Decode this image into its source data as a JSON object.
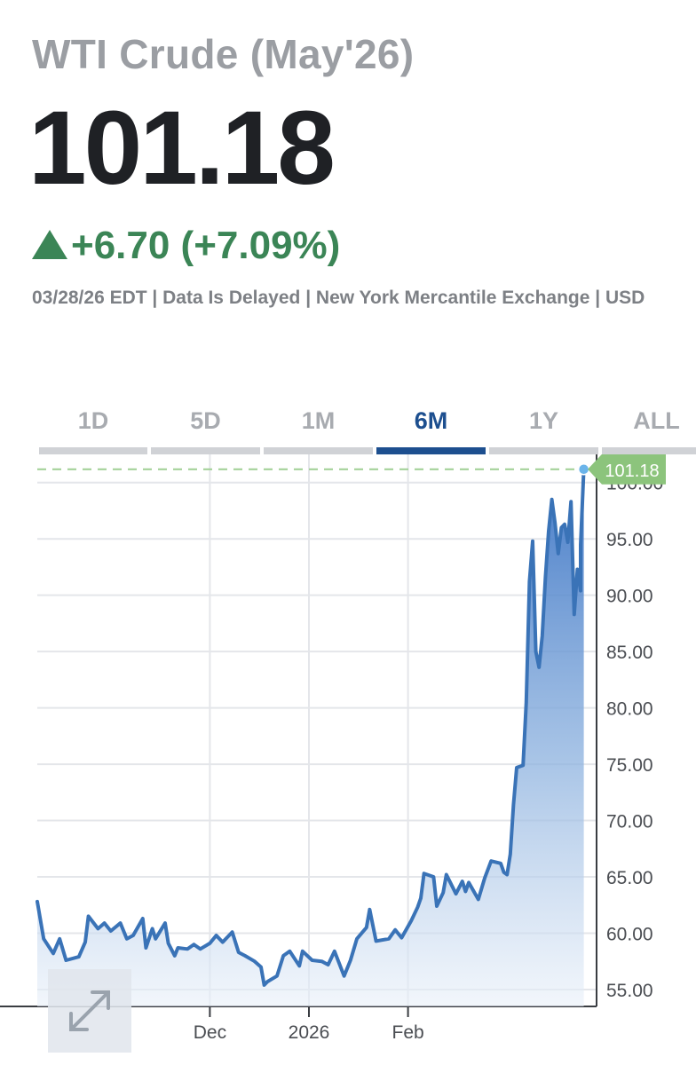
{
  "header": {
    "title": "WTI Crude (May'26)",
    "price": "101.18",
    "change": "+6.70 (+7.09%)",
    "meta": "03/28/26 EDT | Data Is Delayed | New York Mercantile Exchange | USD"
  },
  "tabs": [
    {
      "label": "1D",
      "active": false
    },
    {
      "label": "5D",
      "active": false
    },
    {
      "label": "1M",
      "active": false
    },
    {
      "label": "6M",
      "active": true
    },
    {
      "label": "1Y",
      "active": false
    },
    {
      "label": "ALL",
      "active": false
    }
  ],
  "colors": {
    "line": "#3a73b7",
    "positive": "#3b8556",
    "last_marker": "#6bb4ea",
    "last_label_bg": "#8cc47c",
    "active_tab": "#1d4f8f"
  },
  "icons": {
    "expand": "expand-arrows-icon"
  },
  "chart_data": {
    "type": "area",
    "y_ticks": [
      "55.00",
      "60.00",
      "65.00",
      "70.00",
      "75.00",
      "80.00",
      "85.00",
      "90.00",
      "95.00",
      "100.00"
    ],
    "ylim": [
      53.5,
      102.5
    ],
    "y_axis_side": "right",
    "x_ticks": [
      {
        "x": "2025-12-01",
        "label": "Dec"
      },
      {
        "x": "2026-01-01",
        "label": "2026"
      },
      {
        "x": "2026-02-01",
        "label": "Feb"
      }
    ],
    "xlim": [
      "2025-10-08",
      "2026-04-01"
    ],
    "grid": true,
    "last_value": "101.18",
    "reference_line": 101.18,
    "series": [
      {
        "points": [
          [
            "2025-10-08",
            62.8
          ],
          [
            "2025-10-10",
            59.5
          ],
          [
            "2025-10-13",
            58.2
          ],
          [
            "2025-10-15",
            59.5
          ],
          [
            "2025-10-17",
            57.6
          ],
          [
            "2025-10-21",
            57.9
          ],
          [
            "2025-10-23",
            59.2
          ],
          [
            "2025-10-24",
            61.5
          ],
          [
            "2025-10-27",
            60.4
          ],
          [
            "2025-10-29",
            60.9
          ],
          [
            "2025-10-31",
            60.2
          ],
          [
            "2025-11-03",
            60.9
          ],
          [
            "2025-11-05",
            59.5
          ],
          [
            "2025-11-07",
            59.8
          ],
          [
            "2025-11-10",
            61.3
          ],
          [
            "2025-11-11",
            58.7
          ],
          [
            "2025-11-13",
            60.4
          ],
          [
            "2025-11-14",
            59.5
          ],
          [
            "2025-11-17",
            60.9
          ],
          [
            "2025-11-18",
            59.1
          ],
          [
            "2025-11-20",
            58.0
          ],
          [
            "2025-11-21",
            58.7
          ],
          [
            "2025-11-24",
            58.6
          ],
          [
            "2025-11-26",
            59.0
          ],
          [
            "2025-11-28",
            58.6
          ],
          [
            "2025-12-01",
            59.1
          ],
          [
            "2025-12-03",
            59.8
          ],
          [
            "2025-12-05",
            59.2
          ],
          [
            "2025-12-08",
            60.1
          ],
          [
            "2025-12-10",
            58.3
          ],
          [
            "2025-12-12",
            58.0
          ],
          [
            "2025-12-15",
            57.5
          ],
          [
            "2025-12-17",
            57.0
          ],
          [
            "2025-12-18",
            55.4
          ],
          [
            "2025-12-19",
            55.7
          ],
          [
            "2025-12-22",
            56.2
          ],
          [
            "2025-12-23",
            57.1
          ],
          [
            "2025-12-24",
            58.0
          ],
          [
            "2025-12-26",
            58.4
          ],
          [
            "2025-12-29",
            57.1
          ],
          [
            "2025-12-30",
            58.4
          ],
          [
            "2026-01-02",
            57.6
          ],
          [
            "2026-01-05",
            57.5
          ],
          [
            "2026-01-07",
            57.2
          ],
          [
            "2026-01-09",
            58.4
          ],
          [
            "2026-01-12",
            56.2
          ],
          [
            "2026-01-14",
            57.6
          ],
          [
            "2026-01-16",
            59.5
          ],
          [
            "2026-01-19",
            60.5
          ],
          [
            "2026-01-20",
            62.1
          ],
          [
            "2026-01-22",
            59.3
          ],
          [
            "2026-01-26",
            59.5
          ],
          [
            "2026-01-28",
            60.3
          ],
          [
            "2026-01-30",
            59.6
          ],
          [
            "2026-02-02",
            61.1
          ],
          [
            "2026-02-04",
            62.3
          ],
          [
            "2026-02-05",
            63.1
          ],
          [
            "2026-02-06",
            65.3
          ],
          [
            "2026-02-09",
            65.0
          ],
          [
            "2026-02-10",
            62.4
          ],
          [
            "2026-02-12",
            63.6
          ],
          [
            "2026-02-13",
            65.2
          ],
          [
            "2026-02-16",
            63.5
          ],
          [
            "2026-02-18",
            64.6
          ],
          [
            "2026-02-19",
            63.7
          ],
          [
            "2026-02-20",
            64.5
          ],
          [
            "2026-02-23",
            63.0
          ],
          [
            "2026-02-25",
            64.9
          ],
          [
            "2026-02-27",
            66.4
          ],
          [
            "2026-03-02",
            66.2
          ],
          [
            "2026-03-03",
            65.4
          ],
          [
            "2026-03-04",
            65.2
          ],
          [
            "2026-03-05",
            67.0
          ],
          [
            "2026-03-06",
            71.4
          ],
          [
            "2026-03-07",
            74.7
          ],
          [
            "2026-03-09",
            74.9
          ],
          [
            "2026-03-10",
            80.5
          ],
          [
            "2026-03-11",
            91.2
          ],
          [
            "2026-03-12",
            94.8
          ],
          [
            "2026-03-13",
            85.0
          ],
          [
            "2026-03-14",
            83.6
          ],
          [
            "2026-03-15",
            86.4
          ],
          [
            "2026-03-16",
            91.6
          ],
          [
            "2026-03-17",
            95.7
          ],
          [
            "2026-03-18",
            98.5
          ],
          [
            "2026-03-19",
            96.4
          ],
          [
            "2026-03-20",
            93.7
          ],
          [
            "2026-03-21",
            96.0
          ],
          [
            "2026-03-22",
            96.3
          ],
          [
            "2026-03-23",
            94.7
          ],
          [
            "2026-03-24",
            98.3
          ],
          [
            "2026-03-25",
            88.3
          ],
          [
            "2026-03-26",
            92.3
          ],
          [
            "2026-03-27",
            90.4
          ],
          [
            "2026-03-27",
            94.48
          ],
          [
            "2026-03-28",
            101.18
          ]
        ]
      }
    ]
  }
}
